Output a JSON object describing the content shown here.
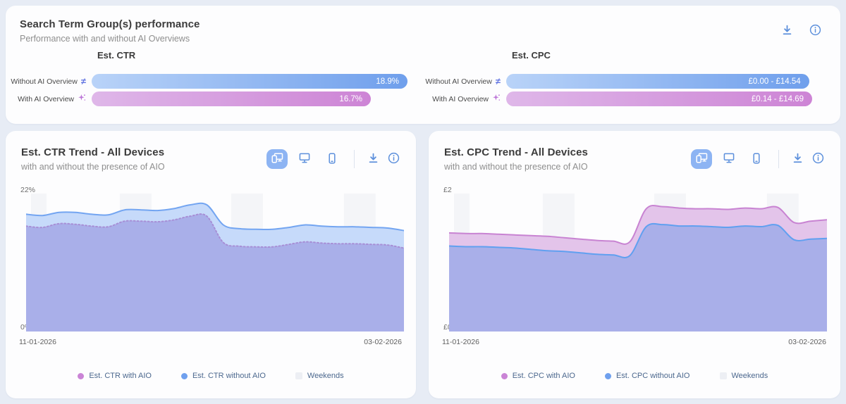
{
  "summary_card": {
    "title": "Search Term Group(s) performance",
    "subtitle": "Performance with and without AI Overviews",
    "metrics": [
      {
        "name": "Est. CTR",
        "rows": [
          {
            "label": "Without AI Overview",
            "icon": "not-equal-icon",
            "value": "18.9%",
            "fill": 1,
            "color_from": "#b9d3f8",
            "color_to": "#6f9fec"
          },
          {
            "label": "With AI Overview",
            "icon": "ai-sparkle-icon",
            "value": "16.7%",
            "fill": 0.884,
            "color_from": "#dfb7e9",
            "color_to": "#cd84d5"
          }
        ]
      },
      {
        "name": "Est. CPC",
        "rows": [
          {
            "label": "Without AI Overview",
            "icon": "not-equal-icon",
            "value": "£0.00 - £14.54",
            "fill": 0.99,
            "color_from": "#b9d3f8",
            "color_to": "#6f9fec"
          },
          {
            "label": "With AI Overview",
            "icon": "ai-sparkle-icon",
            "value": "£0.14 - £14.69",
            "fill": 1,
            "color_from": "#dfb7e9",
            "color_to": "#cd84d5"
          }
        ]
      }
    ]
  },
  "chart_data": [
    {
      "type": "area",
      "title": "Est. CTR Trend - All Devices",
      "subtitle": "with and without the presence of AIO",
      "ylabel_top": "22%",
      "ylabel_bottom": "0%",
      "ymin": 0,
      "ymax": 22,
      "x_start": "11-01-2026",
      "x_end": "03-02-2026",
      "grid": false,
      "legend_position": "bottom",
      "weekend_color": "#f4f5f8",
      "weekend_bands": [
        [
          0.013,
          0.054
        ],
        [
          0.248,
          0.332
        ],
        [
          0.543,
          0.627
        ],
        [
          0.841,
          0.925
        ]
      ],
      "series": [
        {
          "name": "Est. CTR without AIO",
          "stroke": "#73a5f1",
          "fill": "#c6dafa",
          "dash": "",
          "values": [
            18.7,
            18.5,
            19.0,
            19.0,
            18.7,
            18.6,
            19.4,
            19.4,
            19.3,
            19.6,
            20.2,
            20.2,
            17.0,
            16.4,
            16.3,
            16.3,
            16.6,
            17.0,
            16.8,
            16.7,
            16.7,
            16.6,
            16.5,
            16.1
          ]
        },
        {
          "name": "Est. CTR with AIO",
          "stroke": "#a78fd6",
          "fill": "#a9afe9",
          "dash": "2 3",
          "values": [
            16.8,
            16.6,
            17.2,
            17.1,
            16.8,
            16.7,
            17.6,
            17.6,
            17.5,
            17.8,
            18.4,
            18.4,
            14.2,
            13.6,
            13.5,
            13.5,
            13.9,
            14.3,
            14.1,
            14.0,
            14.0,
            13.9,
            13.8,
            13.3
          ]
        }
      ],
      "legend": [
        {
          "label": "Est. CTR with AIO",
          "color": "#ca84d6"
        },
        {
          "label": "Est. CTR without AIO",
          "color": "#6fa0ee"
        },
        {
          "label": "Weekends",
          "color": "#edeff4"
        }
      ]
    },
    {
      "type": "area",
      "title": "Est. CPC Trend - All Devices",
      "subtitle": "with and without the presence of AIO",
      "ylabel_top": "£2",
      "ylabel_bottom": "£0",
      "ymin": 0,
      "ymax": 2,
      "x_start": "11-01-2026",
      "x_end": "03-02-2026",
      "grid": false,
      "legend_position": "bottom",
      "weekend_color": "#f4f5f8",
      "weekend_bands": [
        [
          0.013,
          0.054
        ],
        [
          0.248,
          0.332
        ],
        [
          0.543,
          0.627
        ],
        [
          0.841,
          0.925
        ]
      ],
      "series": [
        {
          "name": "Est. CPC with AIO",
          "stroke": "#c883d2",
          "fill": "#e3c4ea",
          "dash": "",
          "values": [
            1.43,
            1.42,
            1.42,
            1.41,
            1.4,
            1.39,
            1.38,
            1.36,
            1.34,
            1.32,
            1.31,
            1.3,
            1.78,
            1.81,
            1.79,
            1.78,
            1.78,
            1.77,
            1.79,
            1.78,
            1.8,
            1.58,
            1.6,
            1.62
          ]
        },
        {
          "name": "Est. CPC without AIO",
          "stroke": "#60a0f0",
          "fill": "#a9afe9",
          "dash": "",
          "values": [
            1.24,
            1.23,
            1.23,
            1.22,
            1.21,
            1.19,
            1.17,
            1.16,
            1.14,
            1.12,
            1.11,
            1.1,
            1.52,
            1.55,
            1.53,
            1.53,
            1.52,
            1.51,
            1.53,
            1.52,
            1.54,
            1.33,
            1.34,
            1.35
          ]
        }
      ],
      "legend": [
        {
          "label": "Est. CPC with AIO",
          "color": "#ca84d6"
        },
        {
          "label": "Est. CPC without AIO",
          "color": "#6fa0ee"
        },
        {
          "label": "Weekends",
          "color": "#edeff4"
        }
      ]
    }
  ]
}
